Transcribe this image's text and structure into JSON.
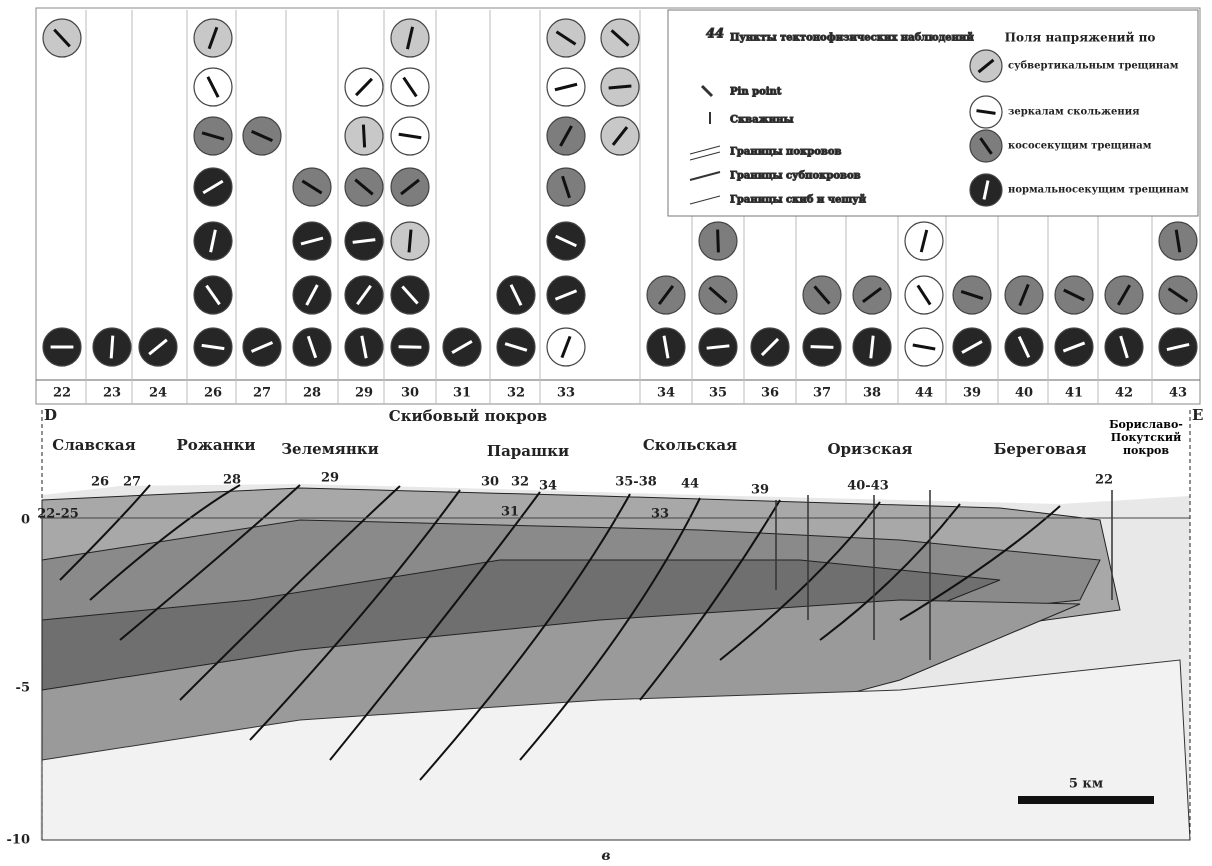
{
  "columns": [
    "22",
    "23",
    "24",
    "26",
    "27",
    "28",
    "29",
    "30",
    "31",
    "32",
    "33",
    "34",
    "35",
    "36",
    "37",
    "38",
    "44",
    "39",
    "40",
    "41",
    "42",
    "43"
  ],
  "legend": {
    "title": "Поля напряжений по",
    "symbols": [
      {
        "mark": "44",
        "text": "Пункты тектонофизических наблюдений"
      },
      {
        "text": "Pin point"
      },
      {
        "text": "Скважины"
      },
      {
        "text": "Границы покровов"
      },
      {
        "text": "Границы субпокровов"
      },
      {
        "text": "Границы скиб и чешуй"
      }
    ],
    "items": [
      "субвертикальным трещинам",
      "зеркалам скольжения",
      "кососекущим трещинам",
      "нормальносекущим трещинам"
    ]
  },
  "section": {
    "left": "D",
    "right": "E",
    "cover": "Скибовый покров",
    "units": [
      "Славская",
      "Рожанки",
      "Зелемянки",
      "Парашки",
      "Скольская",
      "Оризская",
      "Береговая",
      "Бориславо-Покутский покров"
    ],
    "points": [
      "22-25",
      "26",
      "27",
      "28",
      "29",
      "30",
      "32",
      "34",
      "31",
      "35-38",
      "33",
      "44",
      "39",
      "40-43",
      "22"
    ],
    "depth": [
      "0",
      "-5",
      "-10"
    ],
    "scale": "5 км"
  },
  "caption": "в"
}
